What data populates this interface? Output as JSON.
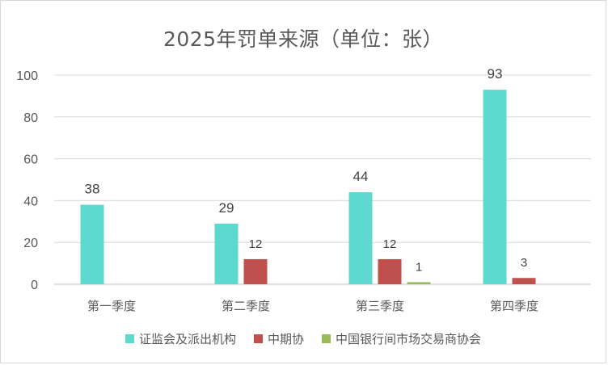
{
  "chart_data": {
    "type": "bar",
    "title": "2025年罚单来源（单位：张）",
    "xlabel": "",
    "ylabel": "",
    "categories": [
      "第一季度",
      "第二季度",
      "第三季度",
      "第四季度"
    ],
    "ylim": [
      0,
      100
    ],
    "yticks": [
      "0",
      "20",
      "40",
      "60",
      "80",
      "100"
    ],
    "grid": true,
    "legend_position": "bottom",
    "series": [
      {
        "name": "证监会及派出机构",
        "color": "#5dd9cf",
        "values": [
          38,
          29,
          44,
          93
        ],
        "labels": [
          "38",
          "29",
          "44",
          "93"
        ]
      },
      {
        "name": "中期协",
        "color": "#c0504d",
        "values": [
          0,
          12,
          12,
          3
        ],
        "labels": [
          "",
          "12",
          "12",
          "3"
        ]
      },
      {
        "name": "中国银行间市场交易商协会",
        "color": "#9bbb59",
        "values": [
          0,
          0,
          1,
          0
        ],
        "labels": [
          "",
          "",
          "1",
          ""
        ]
      }
    ]
  }
}
